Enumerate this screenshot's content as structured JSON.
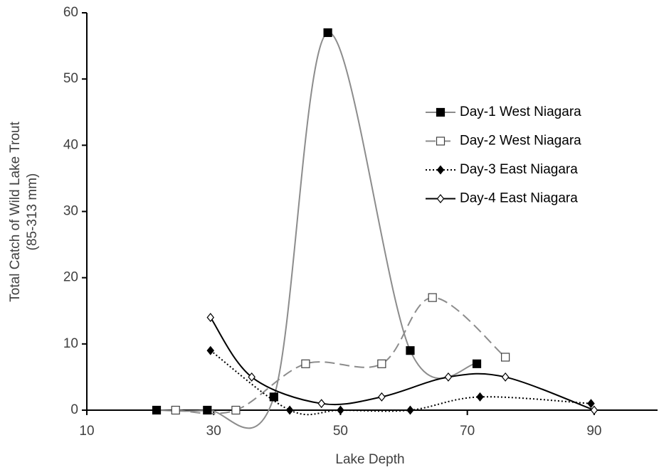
{
  "chart_data": {
    "type": "line",
    "xlabel": "Lake Depth",
    "ylabel": [
      "Total Catch of Wild Lake Trout",
      "(85-313 mm)"
    ],
    "xlim": [
      10,
      100
    ],
    "xticks": [
      10,
      30,
      50,
      70,
      90
    ],
    "ylim": [
      0,
      60
    ],
    "yticks": [
      0,
      10,
      20,
      30,
      40,
      50,
      60
    ],
    "grid": false,
    "legend": "right",
    "series": [
      {
        "name": "Day-1 West Niagara",
        "color": "#8c8c8c",
        "dash": "solid",
        "marker": "square",
        "filled": true,
        "marker_color": "#000000",
        "x": [
          21,
          29,
          39.5,
          48,
          61,
          71.5
        ],
        "values": [
          0,
          0,
          2,
          57,
          9,
          7
        ]
      },
      {
        "name": "Day-2 West Niagara",
        "color": "#8c8c8c",
        "dash": "dashed",
        "marker": "square",
        "filled": false,
        "marker_color": "#404040",
        "x": [
          24,
          33.5,
          44.5,
          56.5,
          64.5,
          76
        ],
        "values": [
          0,
          0,
          7,
          7,
          17,
          8
        ]
      },
      {
        "name": "Day-3 East Niagara",
        "color": "#000000",
        "dash": "dotted",
        "marker": "diamond",
        "filled": true,
        "marker_color": "#000000",
        "x": [
          29.5,
          42,
          50,
          61,
          72,
          89.5
        ],
        "values": [
          9,
          0,
          0,
          0,
          2,
          1
        ]
      },
      {
        "name": "Day-4 East Niagara",
        "color": "#000000",
        "dash": "solid",
        "marker": "diamond",
        "filled": false,
        "marker_color": "#000000",
        "x": [
          29.5,
          36,
          47,
          56.5,
          67,
          76,
          90
        ],
        "values": [
          14,
          5,
          1,
          2,
          5,
          5,
          0
        ]
      }
    ]
  }
}
